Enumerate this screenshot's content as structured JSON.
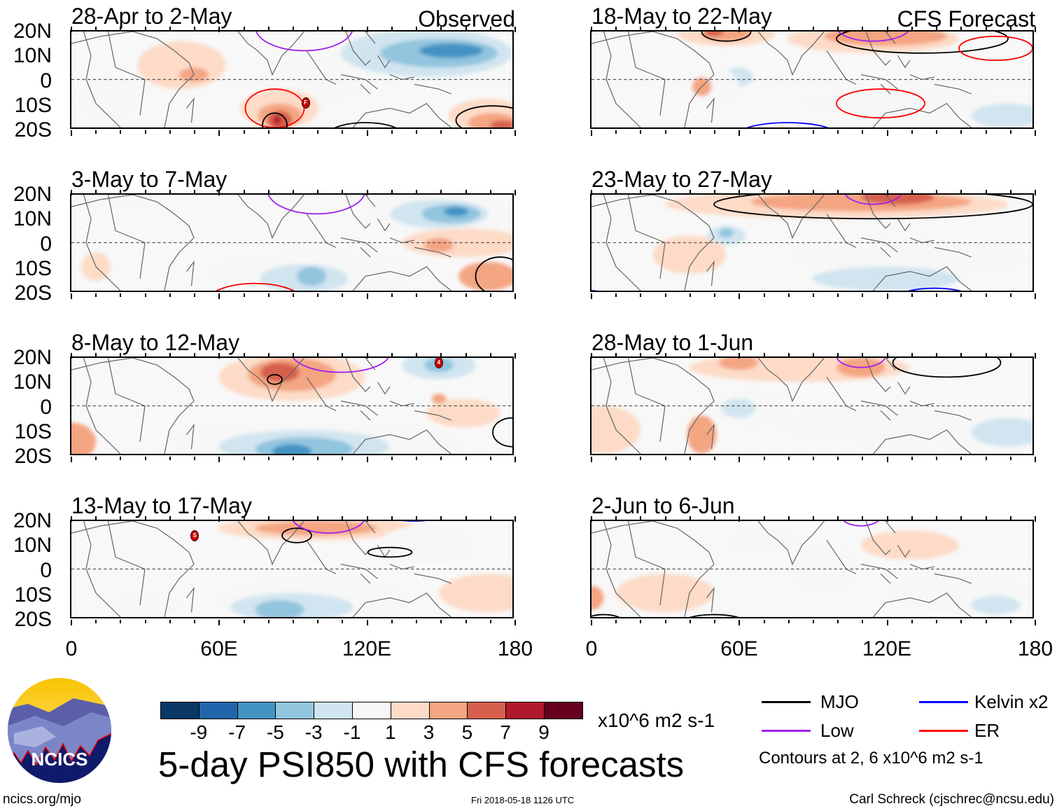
{
  "panels": [
    {
      "title": "28-Apr to 2-May",
      "tag": "Observed",
      "column": "left"
    },
    {
      "title": "3-May to 7-May",
      "column": "left"
    },
    {
      "title": "8-May to 12-May",
      "column": "left"
    },
    {
      "title": "13-May to 17-May",
      "column": "left"
    },
    {
      "title": "18-May to 22-May",
      "tag": "CFS Forecast",
      "column": "right"
    },
    {
      "title": "23-May to 27-May",
      "column": "right"
    },
    {
      "title": "28-May to 1-Jun",
      "column": "right"
    },
    {
      "title": "2-Jun to 6-Jun",
      "column": "right"
    }
  ],
  "lat_labels": [
    "20N",
    "10N",
    "0",
    "10S",
    "20S"
  ],
  "lon_labels": [
    "0",
    "60E",
    "120E",
    "180"
  ],
  "colorbar": {
    "colors": [
      "#0b3866",
      "#2166ac",
      "#4393c3",
      "#92c5de",
      "#d1e5f0",
      "#f7f7f7",
      "#fddbc7",
      "#f4a582",
      "#d6604d",
      "#b2182b",
      "#67001f"
    ],
    "labels": [
      "-9",
      "-7",
      "-5",
      "-3",
      "-1",
      "1",
      "3",
      "5",
      "7",
      "9"
    ],
    "units": "x10^6 m2 s-1"
  },
  "title": "5-day PSI850 with CFS forecasts",
  "legend": {
    "items": [
      {
        "label": "MJO",
        "color": "#000000"
      },
      {
        "label": "Kelvin x2",
        "color": "#0000ff"
      },
      {
        "label": "Low",
        "color": "#a020f0"
      },
      {
        "label": "ER",
        "color": "#ff0000"
      }
    ],
    "contours_note": "Contours at 2, 6 x10^6 m2 s-1"
  },
  "logo": {
    "text": "NCICS"
  },
  "footer": {
    "url": "ncics.org/mjo",
    "timestamp": "Fri 2018-05-18 1126 UTC",
    "author": "Carl Schreck (cjschrec@ncsu.edu)"
  },
  "storm_markers": [
    "F",
    "4",
    "S"
  ]
}
